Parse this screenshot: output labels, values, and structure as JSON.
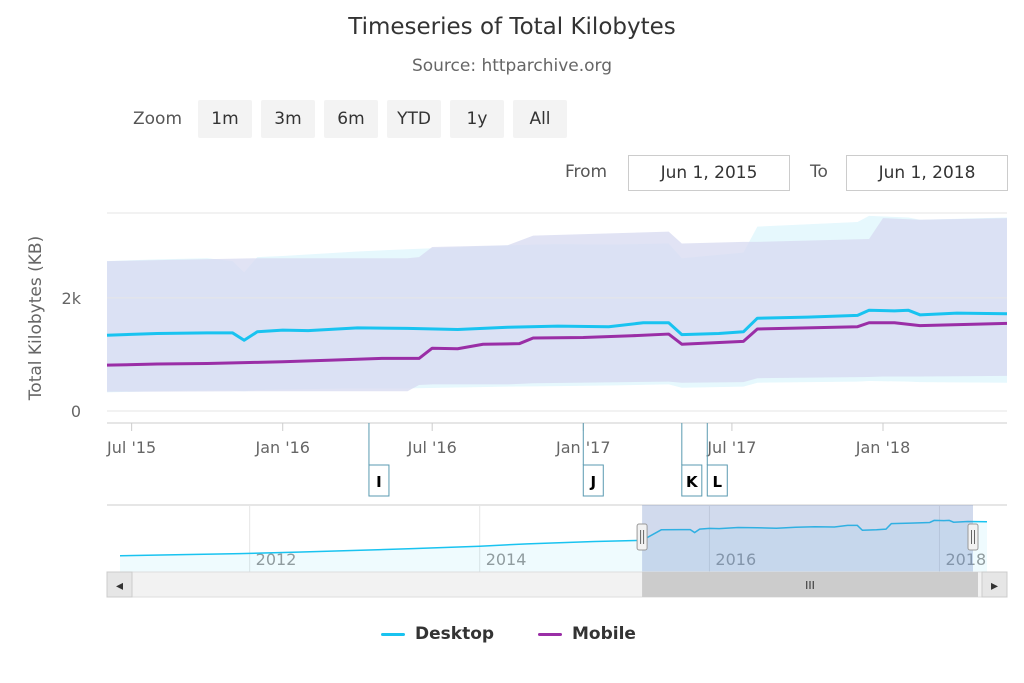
{
  "chart_data": {
    "type": "area",
    "title": "Timeseries of Total Kilobytes",
    "subtitle": "Source: httparchive.org",
    "ylabel": "Total Kilobytes (KB)",
    "ylim": [
      0,
      3500
    ],
    "y_ticks": [
      {
        "value": 0,
        "label": "0"
      },
      {
        "value": 2000,
        "label": "2k"
      }
    ],
    "xlim": [
      "2015-06-01",
      "2018-06-01"
    ],
    "x_ticks": [
      {
        "date": "2015-07-01",
        "label": "Jul '15"
      },
      {
        "date": "2016-01-01",
        "label": "Jan '16"
      },
      {
        "date": "2016-07-01",
        "label": "Jul '16"
      },
      {
        "date": "2017-01-01",
        "label": "Jan '17"
      },
      {
        "date": "2017-07-01",
        "label": "Jul '17"
      },
      {
        "date": "2018-01-01",
        "label": "Jan '18"
      }
    ],
    "legend_position": "bottom",
    "grid": true,
    "series": [
      {
        "name": "Desktop",
        "color": "#19c3f0",
        "band_color": "#e6f8fd",
        "points": [
          [
            "2015-06-01",
            1340
          ],
          [
            "2015-08-01",
            1370
          ],
          [
            "2015-10-01",
            1380
          ],
          [
            "2015-11-01",
            1380
          ],
          [
            "2015-11-15",
            1250
          ],
          [
            "2015-12-01",
            1400
          ],
          [
            "2016-01-01",
            1430
          ],
          [
            "2016-02-01",
            1420
          ],
          [
            "2016-04-01",
            1470
          ],
          [
            "2016-06-01",
            1460
          ],
          [
            "2016-08-01",
            1440
          ],
          [
            "2016-10-01",
            1480
          ],
          [
            "2016-12-01",
            1500
          ],
          [
            "2017-02-01",
            1490
          ],
          [
            "2017-03-15",
            1560
          ],
          [
            "2017-04-15",
            1560
          ],
          [
            "2017-05-01",
            1350
          ],
          [
            "2017-06-15",
            1370
          ],
          [
            "2017-07-15",
            1400
          ],
          [
            "2017-08-01",
            1640
          ],
          [
            "2017-10-01",
            1660
          ],
          [
            "2017-12-01",
            1690
          ],
          [
            "2017-12-15",
            1780
          ],
          [
            "2018-01-15",
            1770
          ],
          [
            "2018-02-01",
            1780
          ],
          [
            "2018-02-15",
            1700
          ],
          [
            "2018-04-01",
            1730
          ],
          [
            "2018-06-01",
            1720
          ]
        ],
        "band": [
          [
            "2015-06-01",
            330,
            2650
          ],
          [
            "2015-08-01",
            350,
            2680
          ],
          [
            "2015-10-01",
            360,
            2700
          ],
          [
            "2015-11-01",
            360,
            2650
          ],
          [
            "2015-11-15",
            350,
            2450
          ],
          [
            "2015-12-01",
            370,
            2720
          ],
          [
            "2016-01-01",
            380,
            2740
          ],
          [
            "2016-04-01",
            400,
            2820
          ],
          [
            "2016-06-01",
            400,
            2860
          ],
          [
            "2016-10-01",
            430,
            2930
          ],
          [
            "2016-12-01",
            440,
            2950
          ],
          [
            "2017-02-01",
            450,
            2940
          ],
          [
            "2017-04-15",
            470,
            2960
          ],
          [
            "2017-05-01",
            410,
            2700
          ],
          [
            "2017-07-15",
            430,
            2800
          ],
          [
            "2017-08-01",
            500,
            3260
          ],
          [
            "2017-12-01",
            520,
            3340
          ],
          [
            "2017-12-15",
            530,
            3450
          ],
          [
            "2018-02-01",
            520,
            3420
          ],
          [
            "2018-02-15",
            510,
            3380
          ],
          [
            "2018-06-01",
            500,
            3420
          ]
        ]
      },
      {
        "name": "Mobile",
        "color": "#9a2ea6",
        "band_color": "#d7d9f0",
        "points": [
          [
            "2015-06-01",
            810
          ],
          [
            "2015-08-01",
            830
          ],
          [
            "2015-10-01",
            840
          ],
          [
            "2015-12-01",
            860
          ],
          [
            "2016-01-01",
            870
          ],
          [
            "2016-03-01",
            900
          ],
          [
            "2016-05-01",
            930
          ],
          [
            "2016-06-15",
            930
          ],
          [
            "2016-07-01",
            1110
          ],
          [
            "2016-08-01",
            1100
          ],
          [
            "2016-09-01",
            1180
          ],
          [
            "2016-10-15",
            1190
          ],
          [
            "2016-11-01",
            1290
          ],
          [
            "2017-01-01",
            1300
          ],
          [
            "2017-03-01",
            1330
          ],
          [
            "2017-04-15",
            1360
          ],
          [
            "2017-05-01",
            1180
          ],
          [
            "2017-07-15",
            1230
          ],
          [
            "2017-08-01",
            1450
          ],
          [
            "2017-10-01",
            1470
          ],
          [
            "2017-12-01",
            1490
          ],
          [
            "2017-12-15",
            1560
          ],
          [
            "2018-01-15",
            1560
          ],
          [
            "2018-02-15",
            1510
          ],
          [
            "2018-06-01",
            1550
          ]
        ],
        "band": [
          [
            "2015-06-01",
            340,
            2650
          ],
          [
            "2015-12-01",
            350,
            2700
          ],
          [
            "2016-06-01",
            350,
            2700
          ],
          [
            "2016-06-15",
            460,
            2720
          ],
          [
            "2016-07-01",
            470,
            2900
          ],
          [
            "2016-10-01",
            470,
            2930
          ],
          [
            "2016-11-01",
            490,
            3100
          ],
          [
            "2017-04-15",
            520,
            3170
          ],
          [
            "2017-05-01",
            500,
            2960
          ],
          [
            "2017-07-15",
            510,
            2990
          ],
          [
            "2017-08-01",
            580,
            2990
          ],
          [
            "2017-12-15",
            600,
            3040
          ],
          [
            "2018-01-01",
            610,
            3410
          ],
          [
            "2018-02-15",
            610,
            3380
          ],
          [
            "2018-06-01",
            620,
            3410
          ]
        ]
      }
    ],
    "flags": [
      {
        "date": "2016-04-15",
        "label": "I"
      },
      {
        "date": "2017-01-01",
        "label": "J"
      },
      {
        "date": "2017-05-01",
        "label": "K"
      },
      {
        "date": "2017-06-01",
        "label": "L"
      }
    ],
    "navigator": {
      "x_ticks": [
        {
          "date": "2012-01-01",
          "label": "2012"
        },
        {
          "date": "2014-01-01",
          "label": "2014"
        },
        {
          "date": "2016-01-01",
          "label": "2016"
        },
        {
          "date": "2018-01-01",
          "label": "2018"
        }
      ],
      "full_range": [
        "2010-11-15",
        "2018-06-01"
      ]
    }
  },
  "controls": {
    "zoom_label": "Zoom",
    "zoom_buttons": [
      "1m",
      "3m",
      "6m",
      "YTD",
      "1y",
      "All"
    ],
    "from_label": "From",
    "from_value": "Jun 1, 2015",
    "to_label": "To",
    "to_value": "Jun 1, 2018"
  },
  "scrollbar": {
    "left_arrow": "◂",
    "right_arrow": "▸",
    "thumb_grip": "III"
  }
}
